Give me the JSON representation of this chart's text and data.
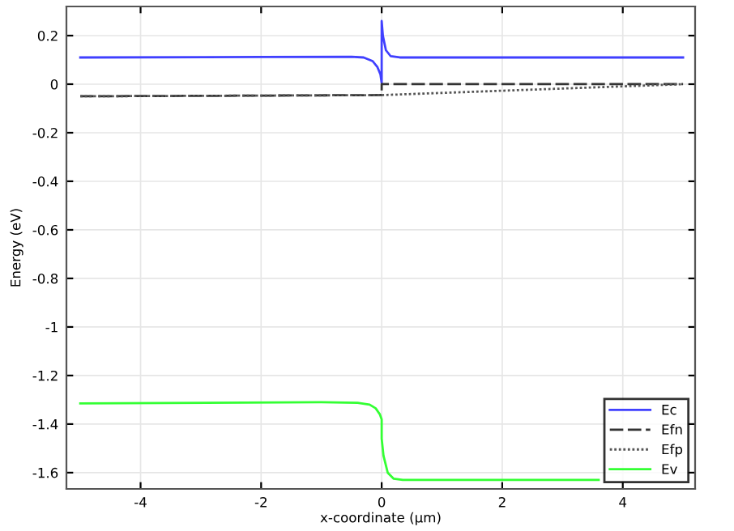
{
  "chart_data": {
    "type": "line",
    "xlabel": "x-coordinate (µm)",
    "ylabel": "Energy (eV)",
    "xlim": [
      -5.23,
      5.2
    ],
    "ylim": [
      -1.667,
      0.32
    ],
    "xticks": [
      {
        "value": -4,
        "label": "-4"
      },
      {
        "value": -2,
        "label": "-2"
      },
      0,
      2,
      4
    ],
    "yticks": [
      {
        "value": -1.6,
        "label": "-1.6"
      },
      {
        "value": -1.4,
        "label": "-1.4"
      },
      {
        "value": -1.2,
        "label": "-1.2"
      },
      {
        "value": -1,
        "label": "-1"
      },
      {
        "value": -0.8,
        "label": "-0.8"
      },
      {
        "value": -0.6,
        "label": "-0.6"
      },
      {
        "value": -0.4,
        "label": "-0.4"
      },
      {
        "value": -0.2,
        "label": "-0.2"
      },
      0,
      0.2
    ],
    "grid": true,
    "legend": "bottom right",
    "series": [
      {
        "name": "Ec",
        "color": "#4040ff",
        "line_style": "solid",
        "x": [
          -5,
          -2,
          -0.5,
          -0.3,
          -0.15,
          -0.07,
          -0.02,
          0,
          0,
          0.02,
          0.07,
          0.15,
          0.3,
          1,
          5
        ],
        "values": [
          0.11,
          0.112,
          0.113,
          0.11,
          0.095,
          0.07,
          0.04,
          0.005,
          0.26,
          0.2,
          0.14,
          0.115,
          0.11,
          0.11,
          0.11
        ]
      },
      {
        "name": "Efn",
        "color": "#333333",
        "line_style": "dashed",
        "x": [
          -5,
          0,
          0,
          5
        ],
        "values": [
          -0.05,
          -0.045,
          0,
          0
        ]
      },
      {
        "name": "Efp",
        "color": "#555555",
        "line_style": "dotted",
        "x": [
          -5,
          0,
          5
        ],
        "values": [
          -0.05,
          -0.045,
          0
        ]
      },
      {
        "name": "Ev",
        "color": "#33ff33",
        "line_style": "solid",
        "x": [
          -5,
          -1,
          -0.4,
          -0.2,
          -0.1,
          -0.03,
          0,
          0,
          0.03,
          0.1,
          0.2,
          0.35,
          1,
          3.6
        ],
        "values": [
          -1.315,
          -1.31,
          -1.312,
          -1.32,
          -1.335,
          -1.36,
          -1.38,
          -1.46,
          -1.53,
          -1.6,
          -1.625,
          -1.63,
          -1.63,
          -1.63
        ]
      }
    ]
  }
}
